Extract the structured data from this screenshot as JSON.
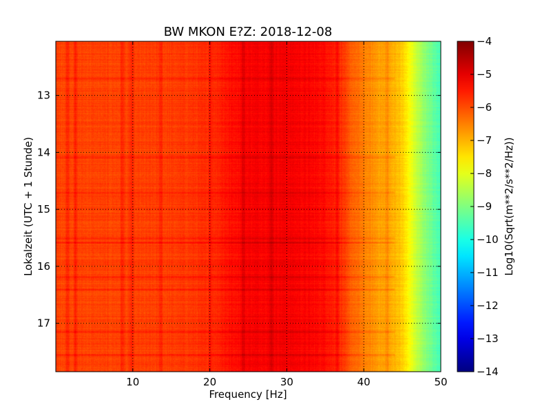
{
  "chart_data": {
    "type": "heatmap",
    "title": "BW MKON E?Z: 2018-12-08",
    "xlabel": "Frequency [Hz]",
    "ylabel": "Lokalzeit (UTC + 1 Stunde)",
    "colorbar_label": "Log10(Sqrt(m**2/s**2/Hz))",
    "xlim": [
      0,
      50
    ],
    "ylim": [
      17.85,
      12.05
    ],
    "x_ticks": [
      10,
      20,
      30,
      40,
      50
    ],
    "y_ticks": [
      13,
      14,
      15,
      16,
      17
    ],
    "colorbar_ticks": [
      -4,
      -5,
      -6,
      -7,
      -8,
      -9,
      -10,
      -11,
      -12,
      -13,
      -14
    ],
    "clim": [
      -14,
      -4
    ],
    "colormap": "jet",
    "grid": true,
    "spectral_profile": {
      "frequency_hz": [
        0,
        5,
        10,
        15,
        20,
        22,
        25,
        30,
        35,
        37,
        38,
        40,
        42,
        44,
        45,
        46,
        47,
        48,
        49,
        50
      ],
      "log10_amplitude": [
        -5.9,
        -5.9,
        -5.9,
        -5.85,
        -5.7,
        -5.45,
        -5.2,
        -5.15,
        -5.35,
        -5.7,
        -6.1,
        -6.5,
        -6.8,
        -7.0,
        -7.3,
        -7.85,
        -8.45,
        -8.9,
        -9.3,
        -9.6
      ]
    },
    "line_features_hz": [
      1.5,
      2.5,
      8.6,
      9.8,
      13.6,
      20.0,
      24.3,
      28.0,
      36.5,
      43.0
    ],
    "strong_time_bands_h": [
      12.7,
      14.08,
      14.7,
      15.5,
      15.58,
      16.18,
      16.4,
      17.15,
      17.55
    ]
  }
}
